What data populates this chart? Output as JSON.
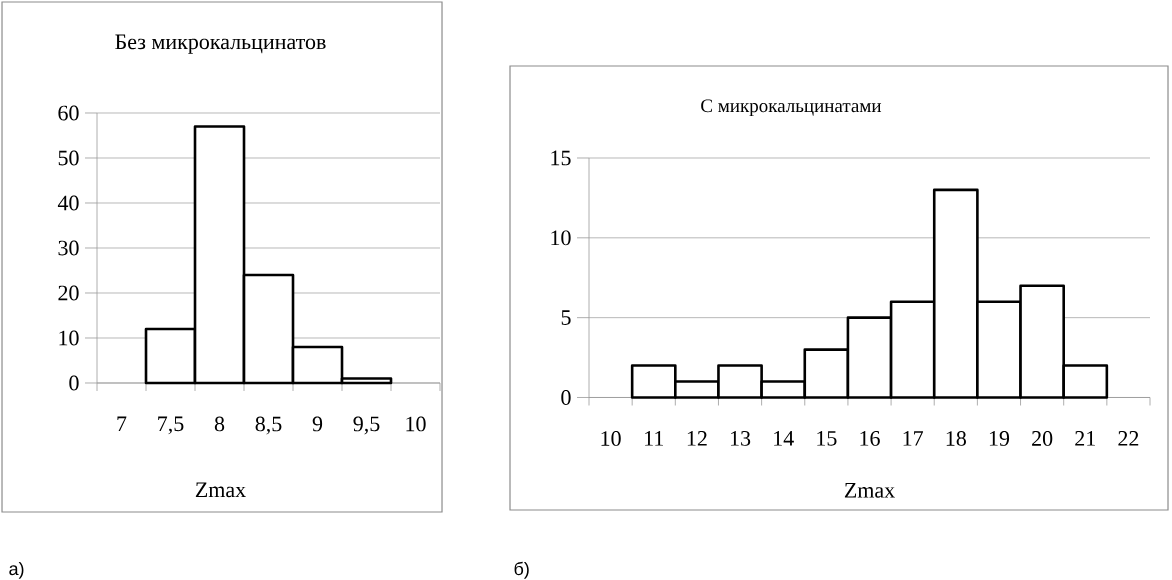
{
  "chart_data": [
    {
      "type": "bar",
      "title": "Без микрокальцинатов",
      "xlabel": "Zmax",
      "categories": [
        "7",
        "7,5",
        "8",
        "8,5",
        "9",
        "9,5",
        "10"
      ],
      "values": [
        null,
        12,
        57,
        24,
        8,
        1,
        null
      ],
      "color": "#ffffff",
      "ylim": [
        0,
        60
      ],
      "yticks": [
        0,
        10,
        20,
        30,
        40,
        50,
        60
      ],
      "grid": "y",
      "annotations": [
        "а)"
      ]
    },
    {
      "type": "bar",
      "title": "С микрокальцинатами",
      "xlabel": "Zmax",
      "categories": [
        "10",
        "11",
        "12",
        "13",
        "14",
        "15",
        "16",
        "17",
        "18",
        "19",
        "20",
        "21",
        "22"
      ],
      "values": [
        null,
        2,
        1,
        2,
        1,
        3,
        5,
        6,
        13,
        6,
        7,
        2,
        null
      ],
      "color": "#ffffff",
      "ylim": [
        0,
        15
      ],
      "yticks": [
        0,
        5,
        10,
        15
      ],
      "grid": "y",
      "annotations": [
        "б)"
      ]
    }
  ]
}
